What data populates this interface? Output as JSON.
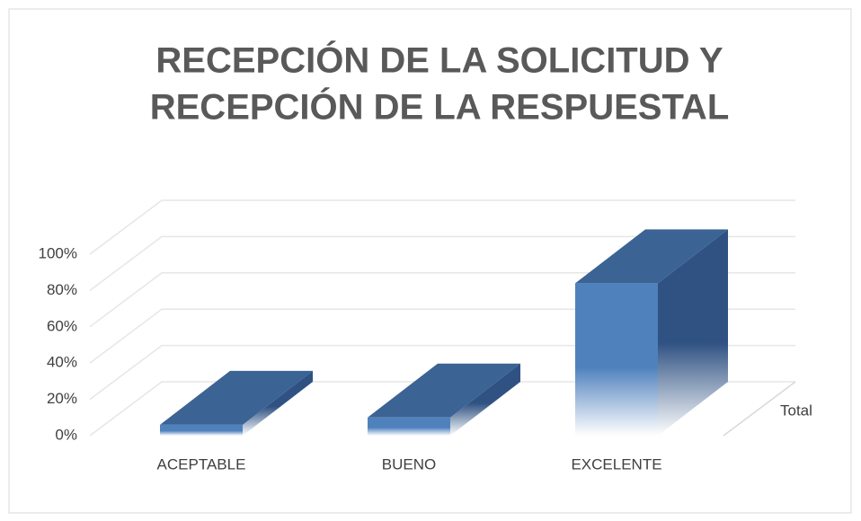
{
  "chart_data": {
    "type": "bar3d",
    "title": [
      "RECEPCIÓN DE LA SOLICITUD Y",
      "RECEPCIÓN DE LA RESPUESTAL"
    ],
    "categories": [
      "ACEPTABLE",
      "BUENO",
      "EXCELENTE"
    ],
    "series": [
      {
        "name": "Total",
        "color": "#4f81bd",
        "values": [
          6,
          10,
          84
        ]
      }
    ],
    "ylim": [
      0,
      100
    ],
    "yticks": [
      {
        "value": 0,
        "label": "0%"
      },
      {
        "value": 20,
        "label": "20%"
      },
      {
        "value": 40,
        "label": "40%"
      },
      {
        "value": 60,
        "label": "60%"
      },
      {
        "value": 80,
        "label": "80%"
      },
      {
        "value": 100,
        "label": "100%"
      }
    ],
    "grid": true,
    "legend": "right"
  }
}
